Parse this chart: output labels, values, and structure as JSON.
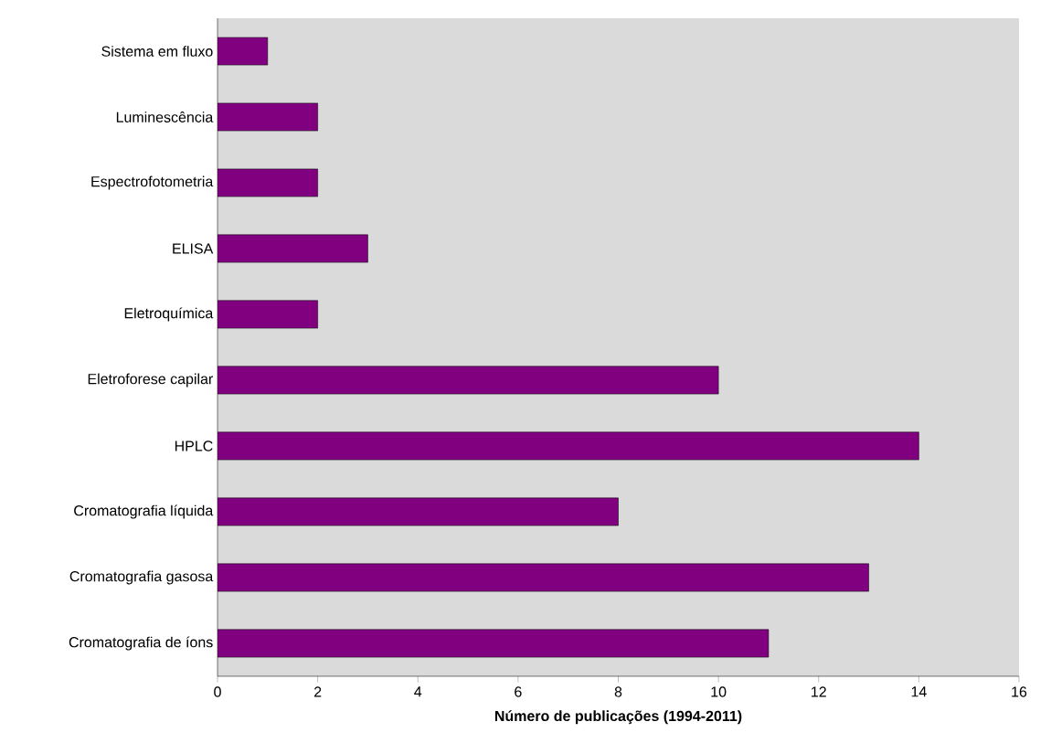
{
  "chart_data": {
    "type": "bar",
    "orientation": "horizontal",
    "xlabel": "Número de publicações (1994-2011)",
    "categories": [
      "Sistema em fluxo",
      "Luminescência",
      "Espectrofotometria",
      "ELISA",
      "Eletroquímica",
      "Eletroforese capilar",
      "HPLC",
      "Cromatografia líquida",
      "Cromatografia gasosa",
      "Cromatografia de íons"
    ],
    "values": [
      1,
      2,
      2,
      3,
      2,
      10,
      14,
      8,
      13,
      11
    ],
    "color": "#800080",
    "xlim": [
      0,
      16
    ],
    "xticks": [
      0,
      2,
      4,
      6,
      8,
      10,
      12,
      14,
      16
    ]
  }
}
